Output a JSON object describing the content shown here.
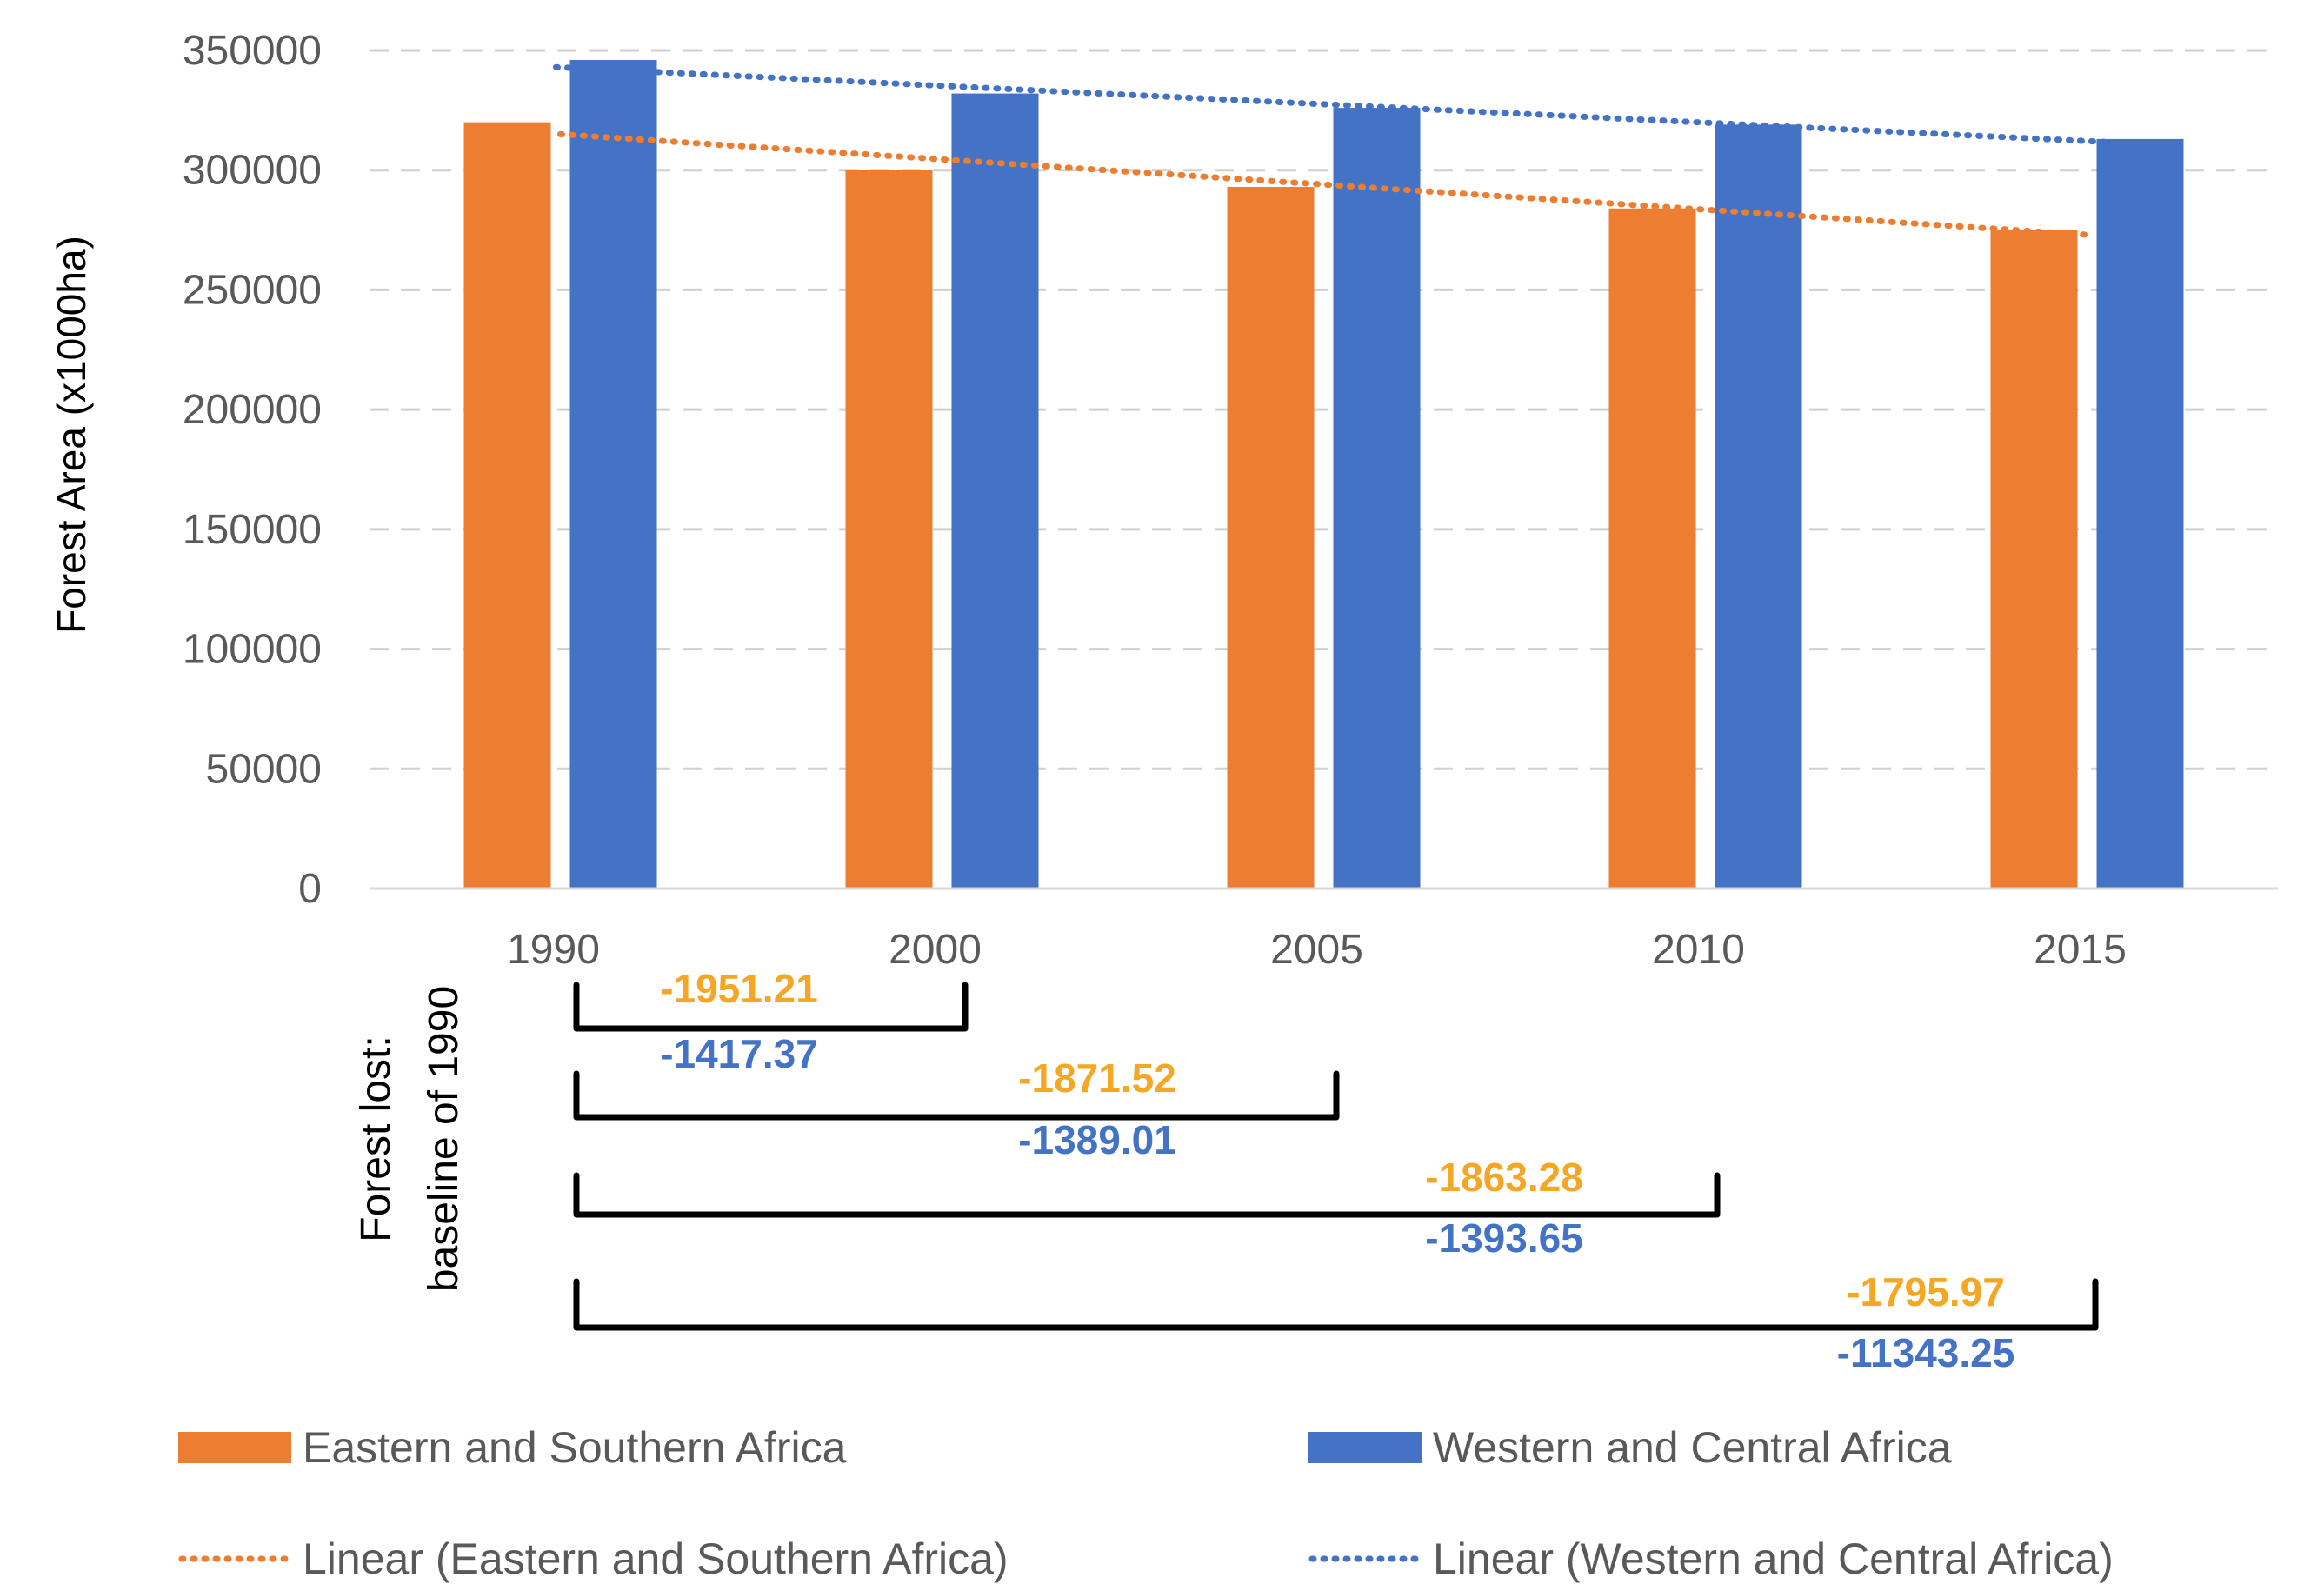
{
  "chart_data": {
    "type": "bar",
    "title": "",
    "xlabel": "",
    "ylabel": "Forest Area (x1000ha)",
    "ylim": [
      0,
      350000
    ],
    "yticks": [
      "0",
      "50000",
      "100000",
      "150000",
      "200000",
      "250000",
      "300000",
      "350000"
    ],
    "grid": true,
    "categories": [
      "1990",
      "2000",
      "2005",
      "2010",
      "2015"
    ],
    "series": [
      {
        "name": "Eastern and Southern Africa",
        "color": "#ED7D31",
        "values": [
          320000,
          300000,
          293000,
          284000,
          275000
        ]
      },
      {
        "name": "Western and Central Africa",
        "color": "#4472C4",
        "values": [
          346000,
          332000,
          326000,
          319000,
          313000
        ]
      }
    ],
    "trendlines": [
      {
        "name": "Linear (Eastern and Southern Africa)",
        "color": "#ED7D31",
        "start": 315000,
        "end": 273000
      },
      {
        "name": "Linear (Western and Central Africa)",
        "color": "#4472C4",
        "start": 343000,
        "end": 311000
      }
    ],
    "loss_panel": {
      "label_line1": "Forest lost:",
      "label_line2": "baseline of 1990",
      "brackets": [
        {
          "to": "2000",
          "east": "-1951.21",
          "west": "-1417.37"
        },
        {
          "to": "2005",
          "east": "-1871.52",
          "west": "-1389.01"
        },
        {
          "to": "2010",
          "east": "-1863.28",
          "west": "-1393.65"
        },
        {
          "to": "2015",
          "east": "-1795.97",
          "west": "-11343.25"
        }
      ]
    },
    "legend": {
      "placement": "bottom",
      "items": [
        "Eastern and Southern Africa",
        "Western and Central Africa",
        "Linear (Eastern and Southern Africa)",
        "Linear (Western and Central Africa)"
      ]
    },
    "loss_colors": {
      "east": "#F5A623",
      "west": "#4472C4"
    }
  }
}
